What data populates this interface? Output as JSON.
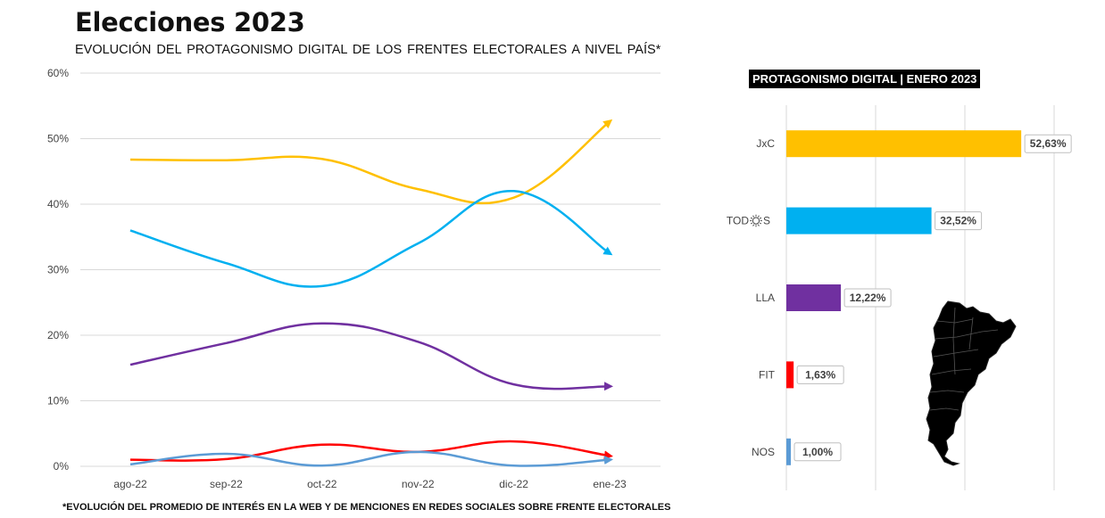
{
  "header": {
    "title": "Elecciones 2023",
    "subtitle": "EVOLUCIÓN DEL PROTAGONISMO DIGITAL DE LOS FRENTES ELECTORALES A NIVEL PAÍS*"
  },
  "footnote": "*EVOLUCIÓN DEL PROMEDIO DE INTERÉS EN LA WEB Y DE MENCIONES EN REDES SOCIALES SOBRE FRENTE ELECTORALES",
  "chart_data": [
    {
      "type": "line",
      "categories": [
        "ago-22",
        "sep-22",
        "oct-22",
        "nov-22",
        "dic-22",
        "ene-23"
      ],
      "yticks": [
        "0%",
        "10%",
        "20%",
        "30%",
        "40%",
        "50%",
        "60%"
      ],
      "ylim": [
        0,
        60
      ],
      "grid": true,
      "series": [
        {
          "color": "#FFC000",
          "values": [
            46.8,
            46.7,
            46.9,
            42.3,
            41.0,
            52.6
          ]
        },
        {
          "color": "#00B0F0",
          "values": [
            36.0,
            31.0,
            27.5,
            34.0,
            42.0,
            32.5
          ]
        },
        {
          "color": "#7030A0",
          "values": [
            15.5,
            18.8,
            21.8,
            19.0,
            12.5,
            12.2
          ]
        },
        {
          "color": "#FF0000",
          "values": [
            1.0,
            1.1,
            3.3,
            2.2,
            3.8,
            1.6
          ]
        },
        {
          "color": "#5B9BD5",
          "values": [
            0.3,
            1.9,
            0.1,
            2.2,
            0.1,
            1.0
          ]
        }
      ]
    },
    {
      "type": "bar",
      "title": "PROTAGONISMO DIGITAL | ENERO 2023",
      "categories": [
        "JxC",
        "TOD",
        "LLA",
        "FIT",
        "NOS"
      ],
      "category_suffix": {
        "TOD": "S"
      },
      "values": [
        52.63,
        32.52,
        12.22,
        1.63,
        1.0
      ],
      "value_labels": [
        "52,63%",
        "32,52%",
        "12,22%",
        "1,63%",
        "1,00%"
      ],
      "colors": [
        "#FFC000",
        "#00B0F0",
        "#7030A0",
        "#FF0000",
        "#5B9BD5"
      ],
      "orientation": "horizontal",
      "xlim": [
        0,
        60
      ],
      "grid": true
    }
  ],
  "icons": {
    "map": "argentina-map-icon",
    "sun": "sun-icon"
  }
}
